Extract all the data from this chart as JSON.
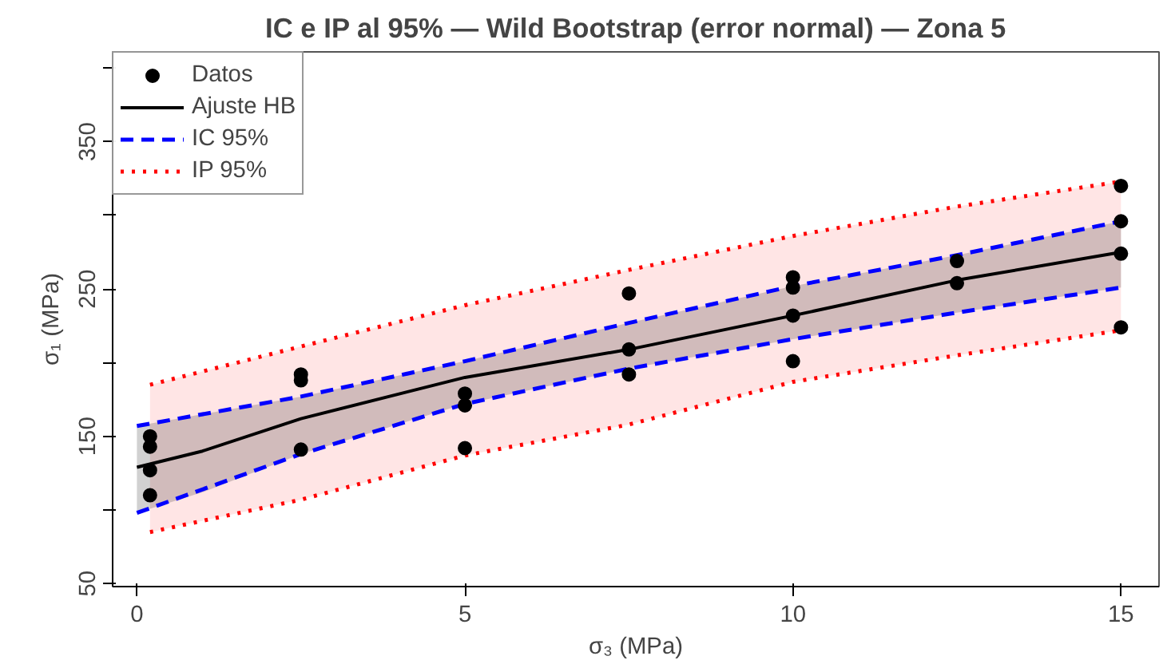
{
  "chart_data": {
    "type": "scatter",
    "title": "IC e IP al 95% — Wild Bootstrap (error normal) — Zona 5",
    "xlabel": "σ₃ (MPa)",
    "ylabel": "σ₁ (MPa)",
    "xlim": [
      -0.37,
      15.58
    ],
    "ylim": [
      48,
      411
    ],
    "xticks": [
      0,
      5,
      10,
      15
    ],
    "yticks": [
      50,
      {
        "value": 100,
        "label": null
      },
      150,
      {
        "value": 200,
        "label": null
      },
      250,
      {
        "value": 300,
        "label": null
      },
      350,
      {
        "value": 400,
        "label": null
      }
    ],
    "grid": false,
    "legend": "top left",
    "series": [
      {
        "name": "IP 95%",
        "type": "line",
        "color": "#ff0000",
        "line_style": "dotted",
        "x": [
          0.2,
          2.5,
          5,
          7.5,
          10,
          12.5,
          15
        ],
        "values": [
          185,
          211,
          239,
          263,
          286,
          306,
          323
        ],
        "lower": [
          85,
          107,
          137,
          158,
          187,
          205,
          222
        ],
        "upper": [
          185,
          211,
          239,
          263,
          286,
          306,
          323
        ]
      },
      {
        "type": "line",
        "color": "#ff0000",
        "line_style": "dotted",
        "x": [
          0.2,
          2.5,
          5,
          7.5,
          10,
          12.5,
          15
        ],
        "values": [
          85,
          107,
          137,
          158,
          187,
          205,
          222
        ]
      },
      {
        "name": "IC 95%",
        "type": "line",
        "color": "#0000ff",
        "line_style": "dashed",
        "x": [
          0,
          2.5,
          5,
          7.5,
          10,
          12.5,
          15
        ],
        "values": [
          157,
          177,
          201,
          227,
          252,
          273,
          296
        ]
      },
      {
        "type": "line",
        "color": "#0000ff",
        "line_style": "dashed",
        "x": [
          0,
          2.5,
          5,
          7.5,
          10,
          12.5,
          15
        ],
        "values": [
          98,
          138,
          172,
          196,
          216,
          234,
          251
        ]
      },
      {
        "name": "Ajuste HB",
        "type": "line",
        "color": "#000000",
        "line_style": "solid",
        "marker": "none",
        "x": [
          0,
          1,
          2.5,
          5,
          7.5,
          10,
          12.5,
          15
        ],
        "values": [
          129,
          140,
          162,
          190,
          209,
          232,
          256,
          275
        ],
        "lower": [
          98,
          112,
          138,
          172,
          196,
          216,
          234,
          251
        ],
        "upper": [
          157,
          165,
          177,
          201,
          227,
          252,
          273,
          296
        ]
      },
      {
        "name": "Datos",
        "color": "#000000",
        "marker": "circle",
        "x": [
          0.2,
          0.2,
          0.2,
          0.2,
          2.5,
          2.5,
          2.5,
          5,
          5,
          5,
          7.5,
          7.5,
          7.5,
          10,
          10,
          10,
          10,
          12.5,
          12.5,
          15,
          15,
          15,
          15
        ],
        "values": [
          150,
          143,
          127,
          110,
          192,
          188,
          141,
          179,
          171,
          142,
          247,
          209,
          192,
          258,
          251,
          232,
          201,
          269,
          254,
          320,
          296,
          274,
          224
        ]
      }
    ]
  }
}
